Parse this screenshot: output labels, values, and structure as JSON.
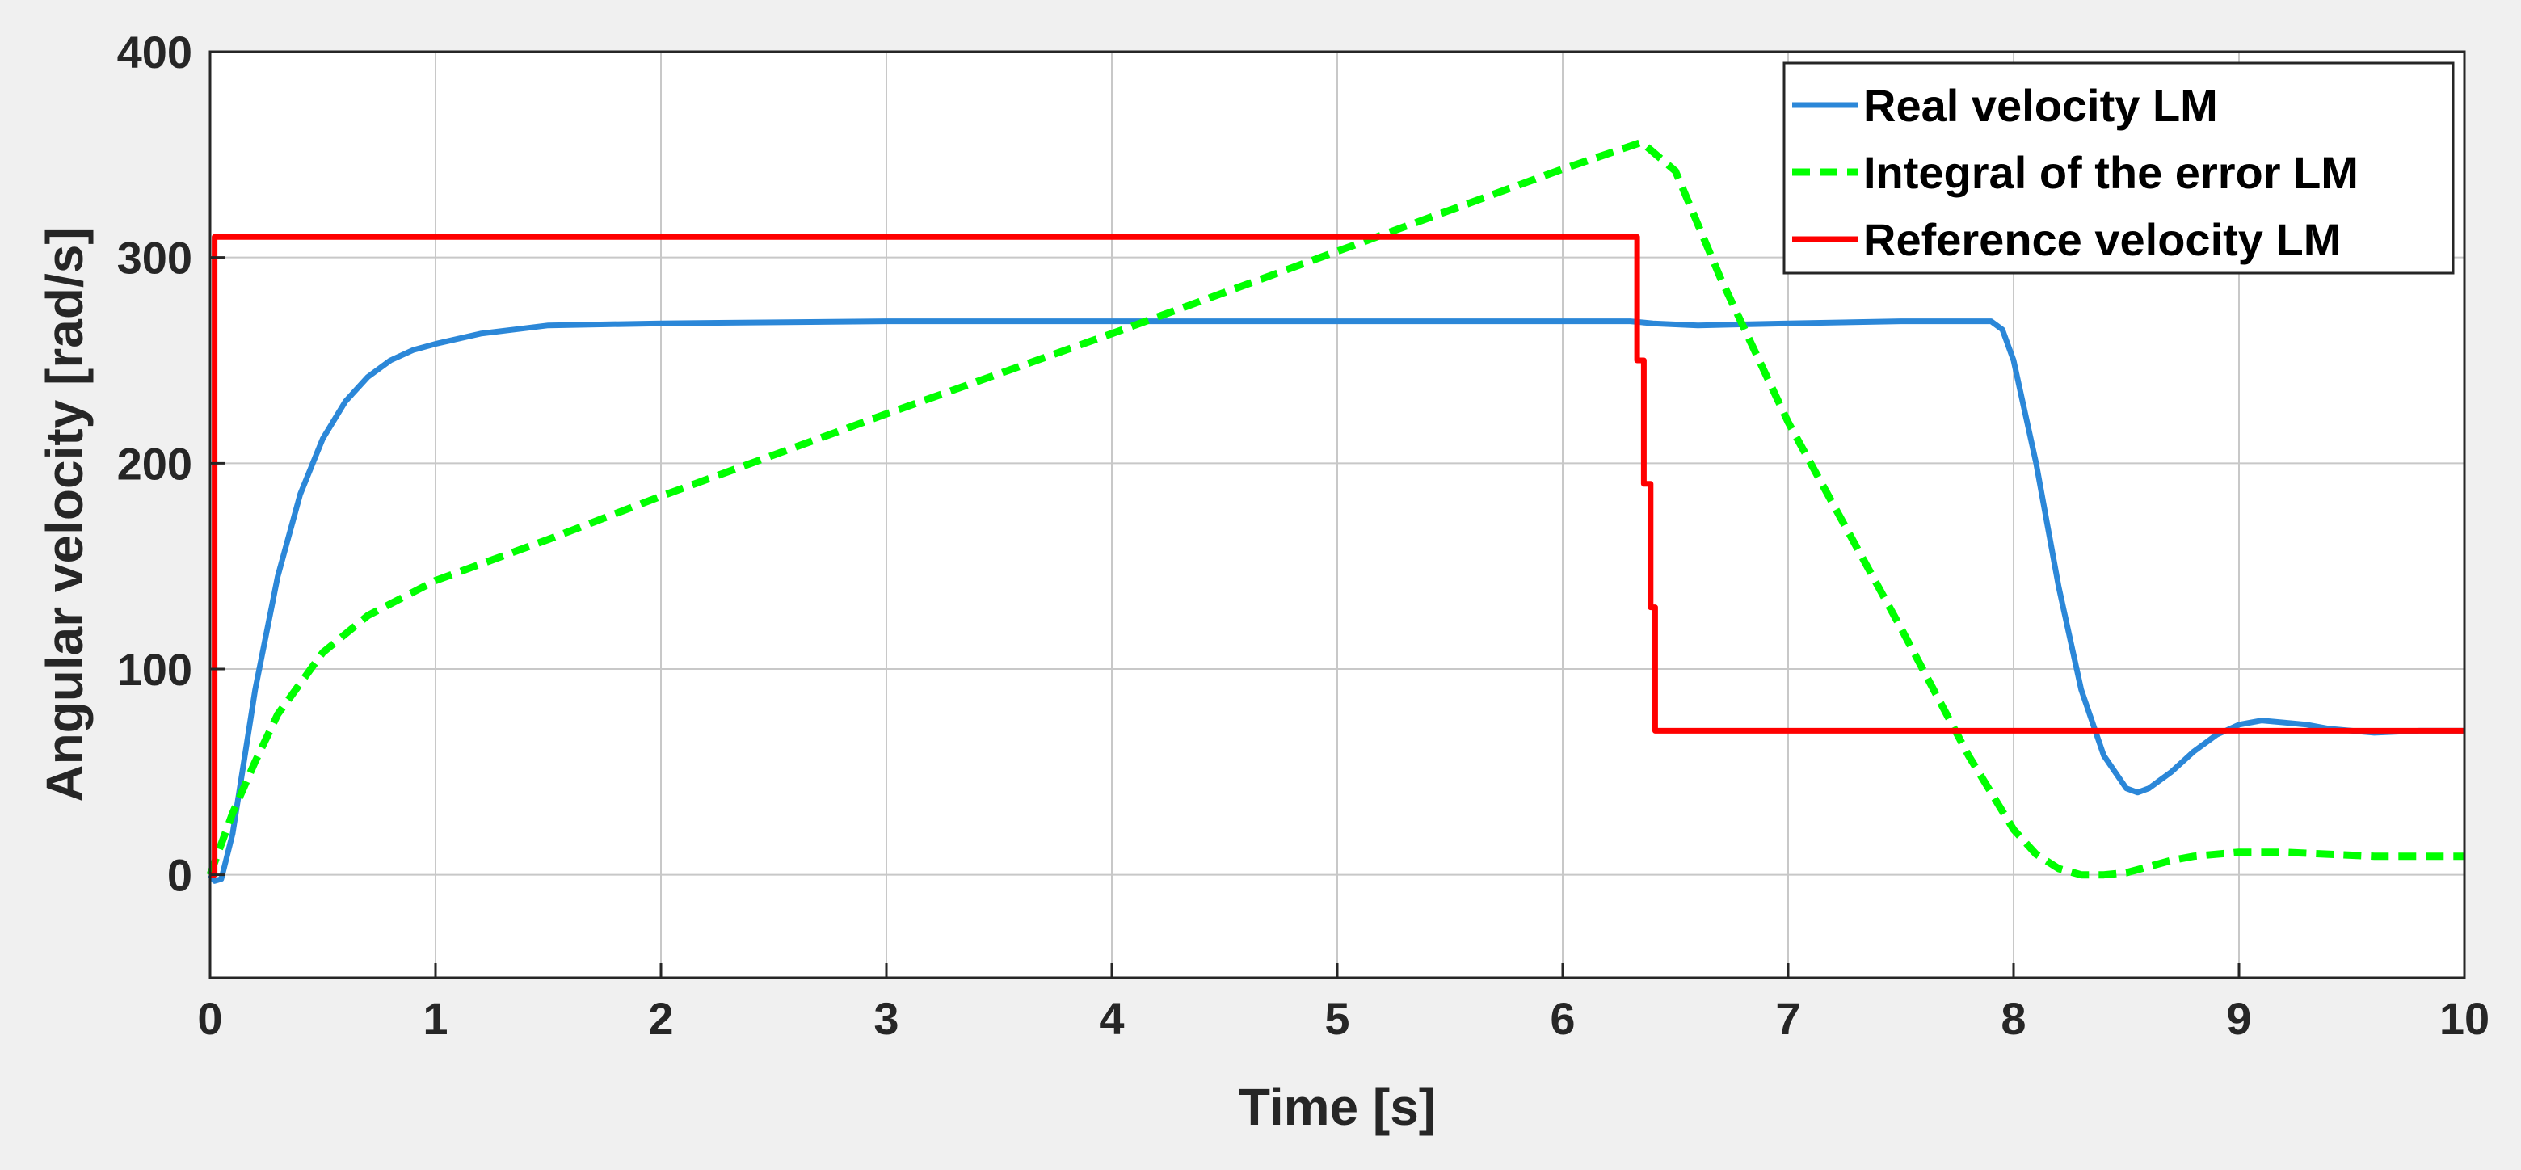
{
  "chart_data": {
    "type": "line",
    "title": "",
    "xlabel": "Time [s]",
    "ylabel": "Angular velocity [rad/s]",
    "xlim": [
      0,
      10
    ],
    "ylim": [
      -50,
      400
    ],
    "xticks": [
      0,
      1,
      2,
      3,
      4,
      5,
      6,
      7,
      8,
      9,
      10
    ],
    "yticks": [
      0,
      100,
      200,
      300,
      400
    ],
    "grid": true,
    "legend_position": "top-right",
    "figure_background": "#f0f0f0",
    "plot_background": "#ffffff",
    "grid_color": "#c8c8c8",
    "series": [
      {
        "name": "Real velocity LM",
        "color": "#2b87d8",
        "style": "solid",
        "x": [
          0,
          0.02,
          0.05,
          0.1,
          0.15,
          0.2,
          0.3,
          0.4,
          0.5,
          0.6,
          0.7,
          0.8,
          0.9,
          1.0,
          1.2,
          1.5,
          2.0,
          3.0,
          4.0,
          5.0,
          6.0,
          6.3,
          6.4,
          6.6,
          7.0,
          7.5,
          7.9,
          7.95,
          8.0,
          8.1,
          8.2,
          8.3,
          8.4,
          8.5,
          8.55,
          8.6,
          8.7,
          8.8,
          8.9,
          9.0,
          9.1,
          9.2,
          9.3,
          9.4,
          9.5,
          9.6,
          9.8,
          10.0
        ],
        "y": [
          0,
          -3,
          -2,
          20,
          55,
          90,
          145,
          185,
          212,
          230,
          242,
          250,
          255,
          258,
          263,
          267,
          268,
          269,
          269,
          269,
          269,
          269,
          268,
          267,
          268,
          269,
          269,
          265,
          250,
          200,
          140,
          90,
          58,
          42,
          40,
          42,
          50,
          60,
          68,
          73,
          75,
          74,
          73,
          71,
          70,
          69,
          70,
          70
        ]
      },
      {
        "name": "Integral of the error LM",
        "color": "#00ff00",
        "style": "dashed",
        "x": [
          0,
          0.05,
          0.1,
          0.2,
          0.3,
          0.5,
          0.7,
          1.0,
          1.5,
          2.0,
          3.0,
          4.0,
          5.0,
          6.0,
          6.35,
          6.5,
          6.7,
          7.0,
          7.5,
          7.8,
          8.0,
          8.1,
          8.2,
          8.3,
          8.4,
          8.5,
          8.6,
          8.7,
          8.8,
          8.9,
          9.0,
          9.2,
          9.4,
          9.6,
          9.8,
          10.0
        ],
        "y": [
          0,
          15,
          30,
          55,
          78,
          108,
          126,
          143,
          163,
          184,
          224,
          263,
          303,
          343,
          356,
          342,
          290,
          220,
          120,
          58,
          22,
          10,
          3,
          0,
          0,
          1,
          4,
          7,
          9,
          10,
          11,
          11,
          10,
          9,
          9,
          9
        ]
      },
      {
        "name": "Reference velocity LM",
        "color": "#ff0000",
        "style": "solid",
        "x": [
          0,
          0.02,
          0.02,
          6.33,
          6.33,
          6.36,
          6.36,
          6.39,
          6.39,
          6.41,
          6.41,
          10.0
        ],
        "y": [
          0,
          0,
          310,
          310,
          250,
          250,
          190,
          190,
          130,
          130,
          70,
          70
        ]
      }
    ]
  }
}
